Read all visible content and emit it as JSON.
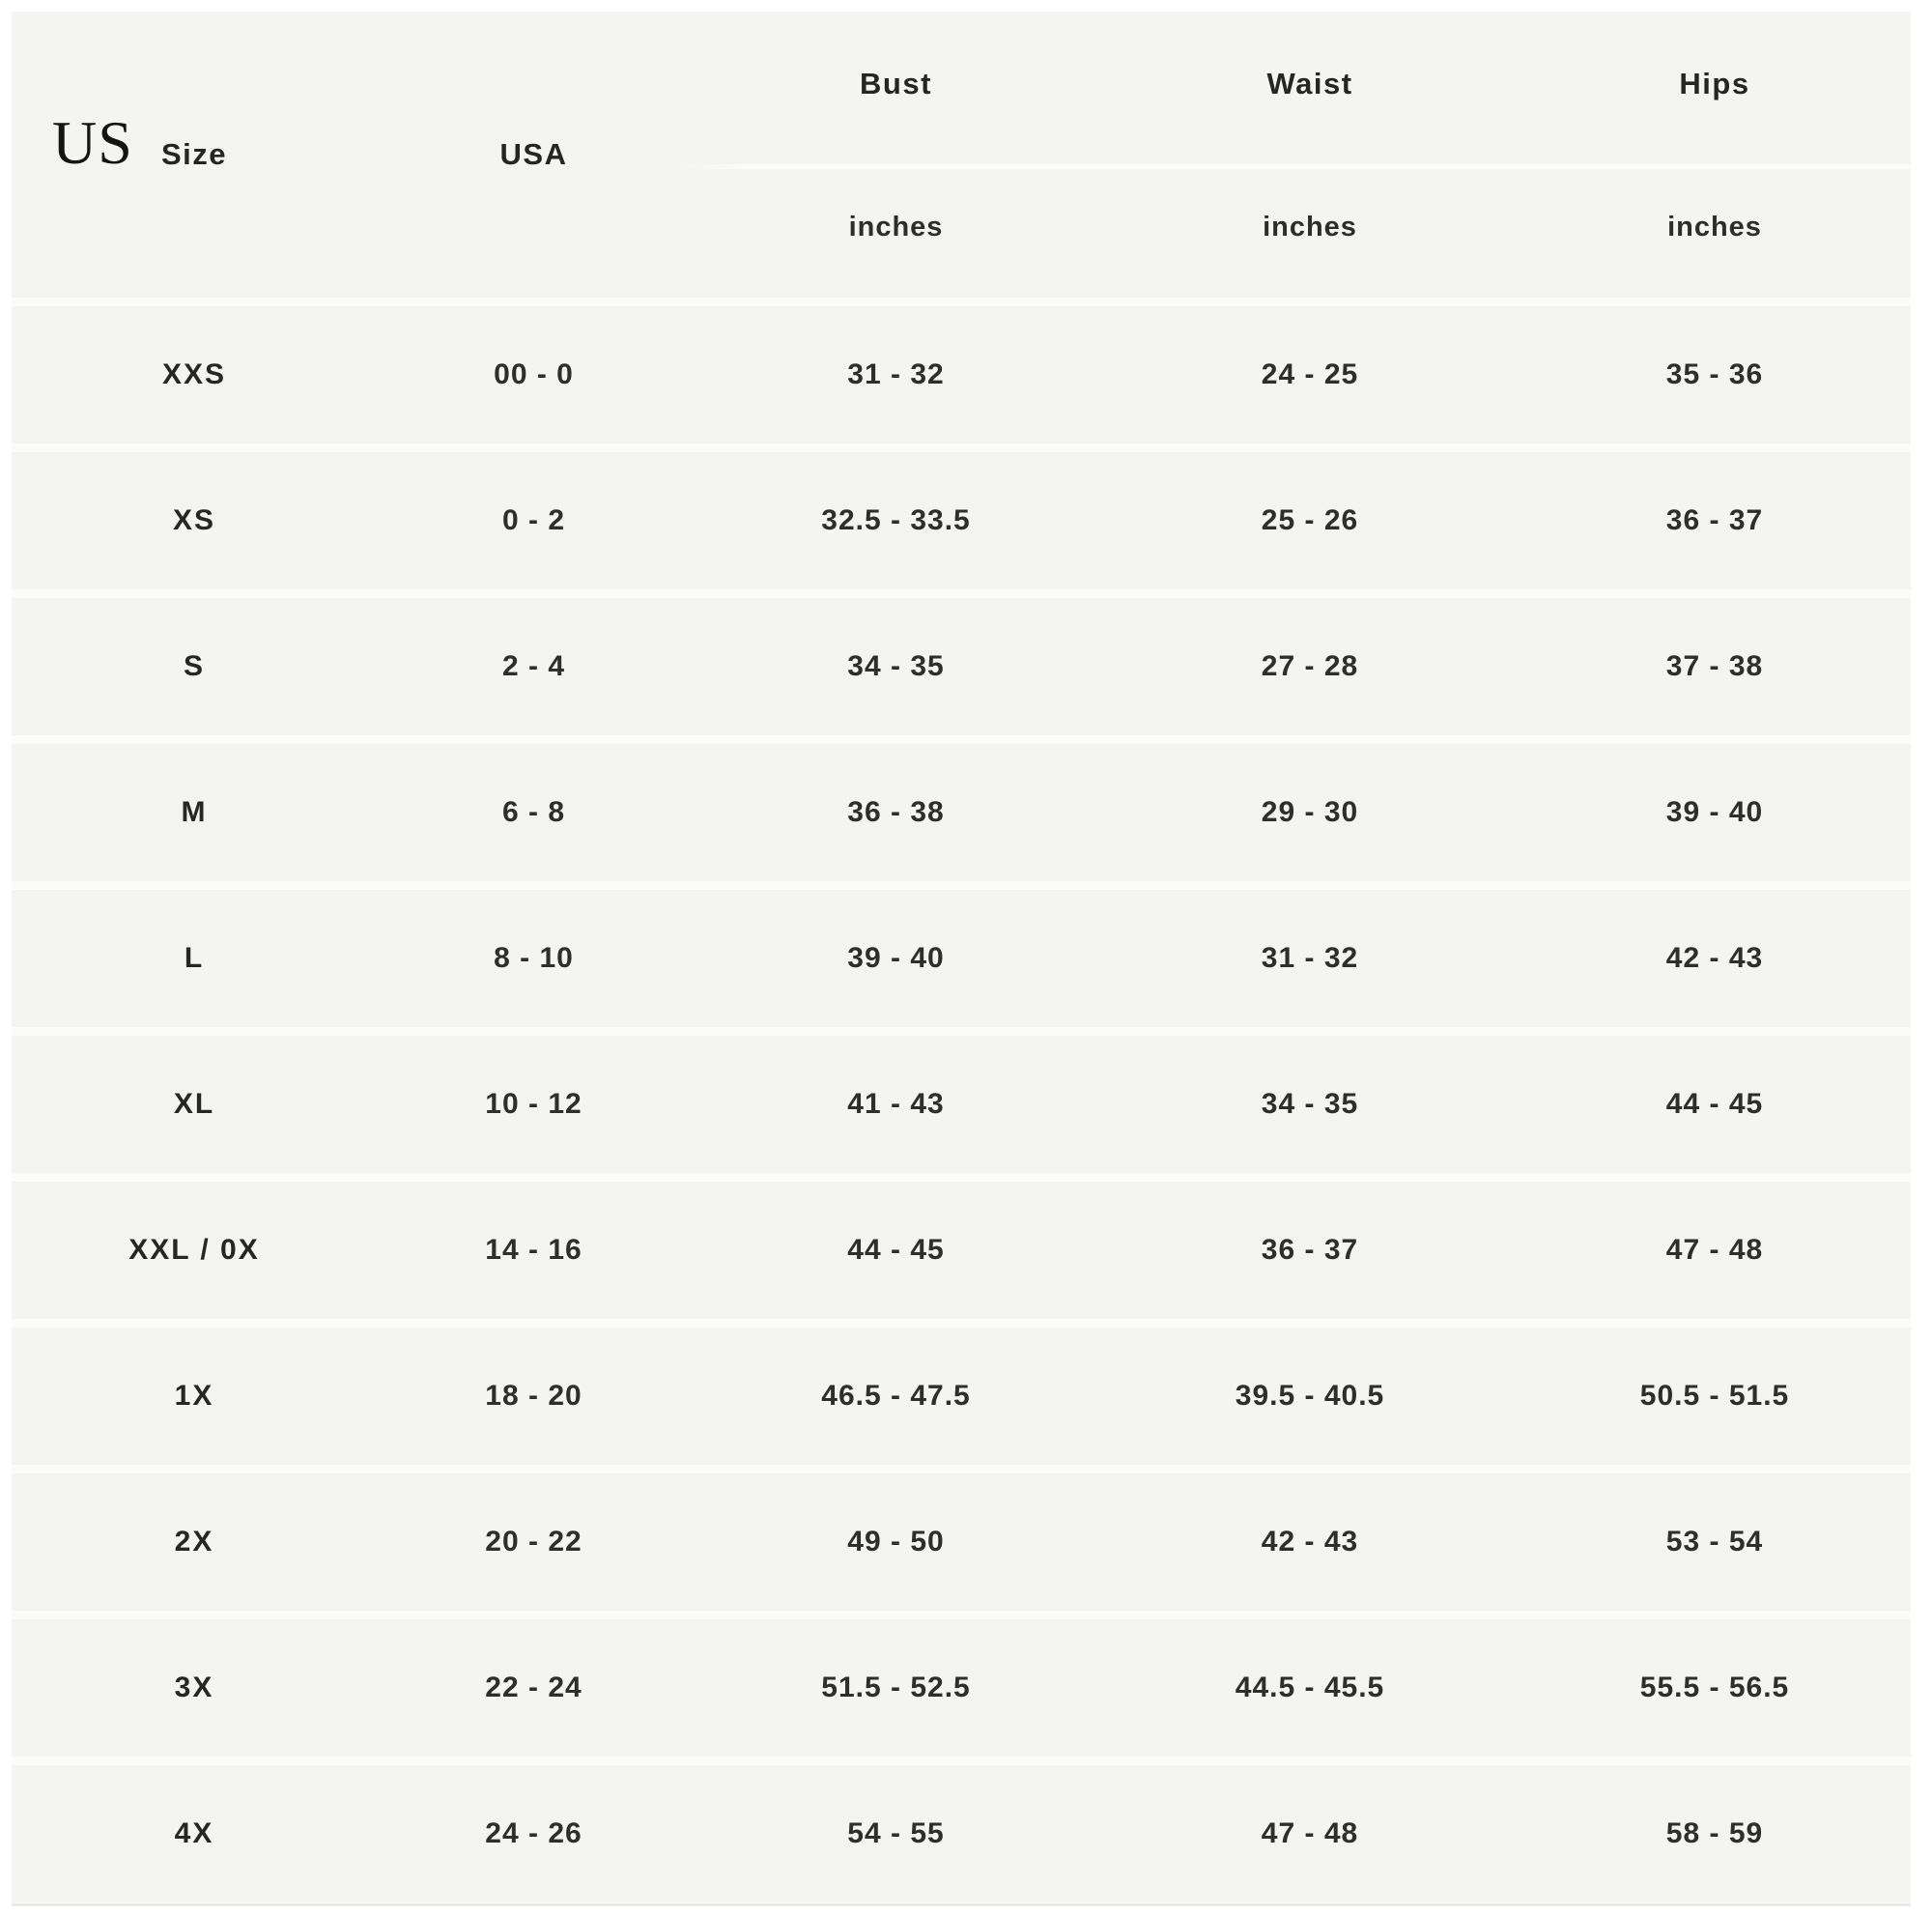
{
  "colors": {
    "row_background": "#f4f4f2",
    "separator": "#fbfbf9",
    "text": "#2e2e2e"
  },
  "header": {
    "us_label": "US",
    "size_label": "Size",
    "usa_label": "USA",
    "columns": [
      {
        "label": "Bust",
        "unit": "inches"
      },
      {
        "label": "Waist",
        "unit": "inches"
      },
      {
        "label": "Hips",
        "unit": "inches"
      }
    ]
  },
  "rows": [
    {
      "size": "XXS",
      "usa": "00 - 0",
      "bust": "31 - 32",
      "waist": "24 - 25",
      "hips": "35 - 36"
    },
    {
      "size": "XS",
      "usa": "0 - 2",
      "bust": "32.5 - 33.5",
      "waist": "25 - 26",
      "hips": "36 - 37"
    },
    {
      "size": "S",
      "usa": "2 - 4",
      "bust": "34 - 35",
      "waist": "27 - 28",
      "hips": "37 - 38"
    },
    {
      "size": "M",
      "usa": "6 - 8",
      "bust": "36 - 38",
      "waist": "29 - 30",
      "hips": "39 - 40"
    },
    {
      "size": "L",
      "usa": "8 - 10",
      "bust": "39 - 40",
      "waist": "31 - 32",
      "hips": "42 - 43"
    },
    {
      "size": "XL",
      "usa": "10 - 12",
      "bust": "41 - 43",
      "waist": "34 - 35",
      "hips": "44 - 45"
    },
    {
      "size": "XXL / 0X",
      "usa": "14 - 16",
      "bust": "44 - 45",
      "waist": "36 - 37",
      "hips": "47 - 48"
    },
    {
      "size": "1X",
      "usa": "18 - 20",
      "bust": "46.5 - 47.5",
      "waist": "39.5 - 40.5",
      "hips": "50.5 - 51.5"
    },
    {
      "size": "2X",
      "usa": "20 - 22",
      "bust": "49 - 50",
      "waist": "42 - 43",
      "hips": "53 - 54"
    },
    {
      "size": "3X",
      "usa": "22 - 24",
      "bust": "51.5 - 52.5",
      "waist": "44.5 - 45.5",
      "hips": "55.5 - 56.5"
    },
    {
      "size": "4X",
      "usa": "24 - 26",
      "bust": "54 - 55",
      "waist": "47 - 48",
      "hips": "58 - 59"
    }
  ]
}
